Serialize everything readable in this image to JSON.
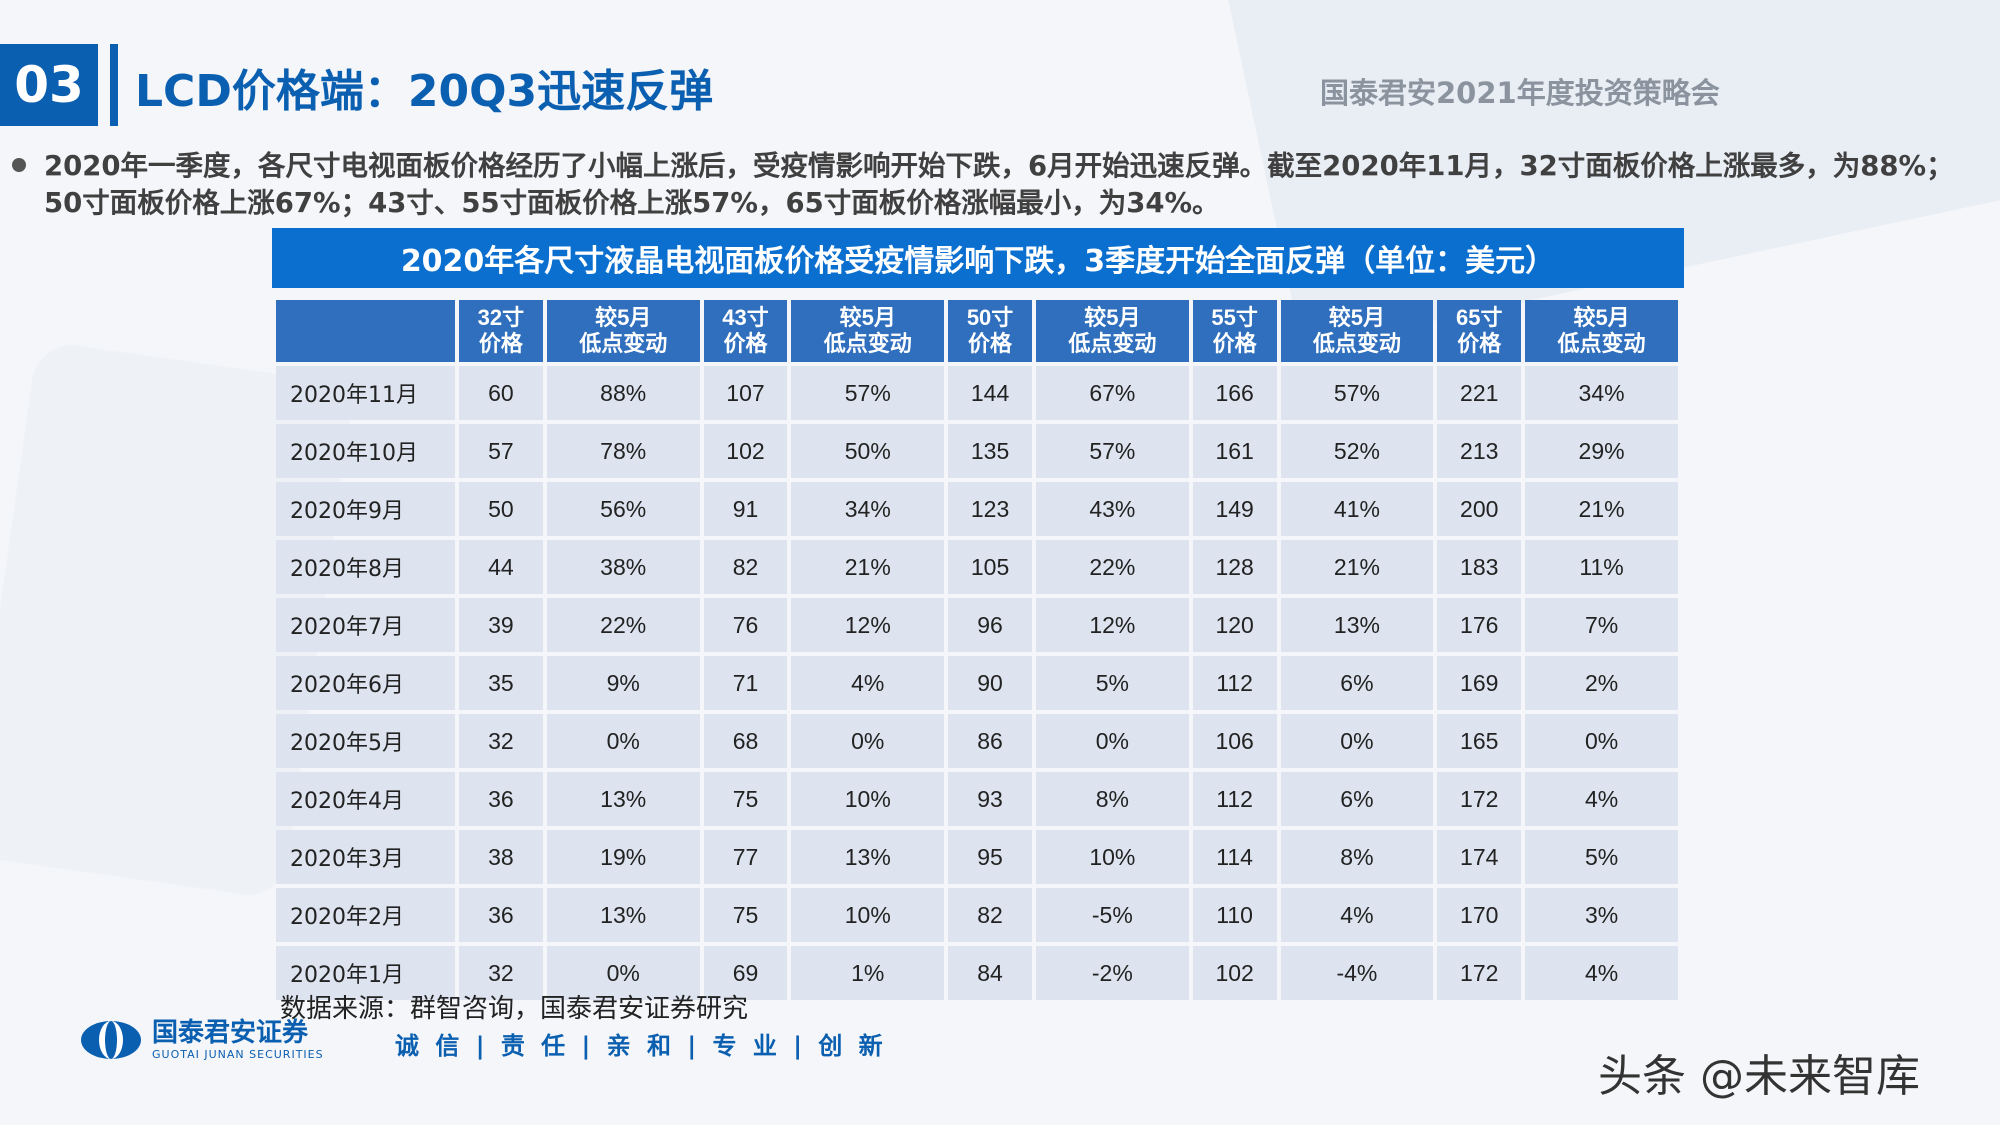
{
  "header": {
    "section_number": "03",
    "title": "LCD价格端：20Q3迅速反弹",
    "event": "国泰君安2021年度投资策略会"
  },
  "bullet": {
    "text": "2020年一季度，各尺寸电视面板价格经历了小幅上涨后，受疫情影响开始下跌，6月开始迅速反弹。截至2020年11月，32寸面板价格上涨最多，为88%；50寸面板价格上涨67%；43寸、55寸面板价格上涨57%，65寸面板价格涨幅最小，为34%。"
  },
  "table": {
    "caption": "2020年各尺寸液晶电视面板价格受疫情影响下跌，3季度开始全面反弹（单位：美元）",
    "columns": [
      {
        "line1": "32寸",
        "line2": "价格"
      },
      {
        "line1": "较5月",
        "line2": "低点变动"
      },
      {
        "line1": "43寸",
        "line2": "价格"
      },
      {
        "line1": "较5月",
        "line2": "低点变动"
      },
      {
        "line1": "50寸",
        "line2": "价格"
      },
      {
        "line1": "较5月",
        "line2": "低点变动"
      },
      {
        "line1": "55寸",
        "line2": "价格"
      },
      {
        "line1": "较5月",
        "line2": "低点变动"
      },
      {
        "line1": "65寸",
        "line2": "价格"
      },
      {
        "line1": "较5月",
        "line2": "低点变动"
      }
    ],
    "rows": [
      {
        "label": "2020年11月",
        "cells": [
          "60",
          "88%",
          "107",
          "57%",
          "144",
          "67%",
          "166",
          "57%",
          "221",
          "34%"
        ]
      },
      {
        "label": "2020年10月",
        "cells": [
          "57",
          "78%",
          "102",
          "50%",
          "135",
          "57%",
          "161",
          "52%",
          "213",
          "29%"
        ]
      },
      {
        "label": "2020年9月",
        "cells": [
          "50",
          "56%",
          "91",
          "34%",
          "123",
          "43%",
          "149",
          "41%",
          "200",
          "21%"
        ]
      },
      {
        "label": "2020年8月",
        "cells": [
          "44",
          "38%",
          "82",
          "21%",
          "105",
          "22%",
          "128",
          "21%",
          "183",
          "11%"
        ]
      },
      {
        "label": "2020年7月",
        "cells": [
          "39",
          "22%",
          "76",
          "12%",
          "96",
          "12%",
          "120",
          "13%",
          "176",
          "7%"
        ]
      },
      {
        "label": "2020年6月",
        "cells": [
          "35",
          "9%",
          "71",
          "4%",
          "90",
          "5%",
          "112",
          "6%",
          "169",
          "2%"
        ]
      },
      {
        "label": "2020年5月",
        "cells": [
          "32",
          "0%",
          "68",
          "0%",
          "86",
          "0%",
          "106",
          "0%",
          "165",
          "0%"
        ]
      },
      {
        "label": "2020年4月",
        "cells": [
          "36",
          "13%",
          "75",
          "10%",
          "93",
          "8%",
          "112",
          "6%",
          "172",
          "4%"
        ]
      },
      {
        "label": "2020年3月",
        "cells": [
          "38",
          "19%",
          "77",
          "13%",
          "95",
          "10%",
          "114",
          "8%",
          "174",
          "5%"
        ]
      },
      {
        "label": "2020年2月",
        "cells": [
          "36",
          "13%",
          "75",
          "10%",
          "82",
          "-5%",
          "110",
          "4%",
          "170",
          "3%"
        ]
      },
      {
        "label": "2020年1月",
        "cells": [
          "32",
          "0%",
          "69",
          "1%",
          "84",
          "-2%",
          "102",
          "-4%",
          "172",
          "4%"
        ]
      }
    ],
    "source": "数据来源：群智咨询，国泰君安证券研究"
  },
  "footer": {
    "logo_cn": "国泰君安证券",
    "logo_en": "GUOTAI JUNAN SECURITIES",
    "motto": "诚 信 | 责 任 | 亲 和 | 专 业 | 创 新",
    "watermark": "头条 @未来智库"
  },
  "colors": {
    "brand_blue": "#0b5fb0",
    "caption_blue": "#0b6fd0",
    "header_cell": "#2f6fbd",
    "body_cell": "#dde4ef"
  }
}
